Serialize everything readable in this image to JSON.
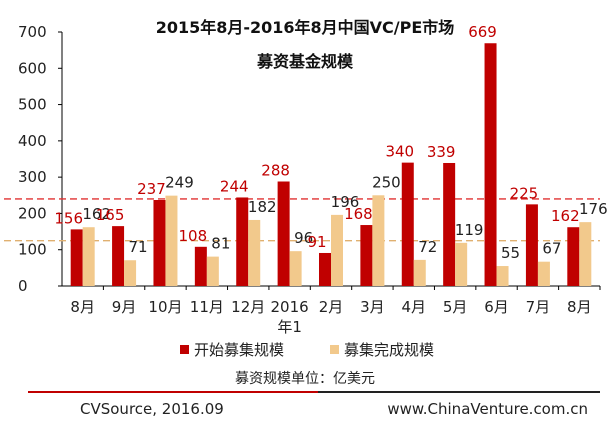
{
  "chart_data": {
    "type": "bar",
    "title_line1": "2015年8月-2016年8月中国VC/PE市场",
    "title_line2": "募资基金规模",
    "categories": [
      "8月",
      "9月",
      "10月",
      "11月",
      "12月",
      "2016年1",
      "2月",
      "3月",
      "4月",
      "5月",
      "6月",
      "7月",
      "8月"
    ],
    "series": [
      {
        "name": "开始募集规模",
        "color": "#c00000",
        "label_color": "#c00000",
        "values": [
          156,
          165,
          237,
          108,
          244,
          288,
          91,
          168,
          340,
          339,
          669,
          225,
          162
        ]
      },
      {
        "name": "募集完成规模",
        "color": "#f2c98c",
        "label_color": "#222222",
        "values": [
          162,
          71,
          249,
          81,
          182,
          96,
          196,
          250,
          72,
          119,
          55,
          67,
          176
        ]
      }
    ],
    "ylim": [
      0,
      700
    ],
    "yticks": [
      0,
      100,
      200,
      300,
      400,
      500,
      600,
      700
    ],
    "reference_lines": [
      {
        "value": 240,
        "color": "#e03030",
        "style": "dashed"
      },
      {
        "value": 125,
        "color": "#e0b070",
        "style": "dashed"
      }
    ],
    "legend_position": "bottom",
    "unit_note": "募资规模单位：亿美元"
  },
  "footer": {
    "source": "CVSource, 2016.09",
    "website": "www.ChinaVenture.com.cn",
    "divider_colors": [
      "#c00000",
      "#222222"
    ]
  }
}
